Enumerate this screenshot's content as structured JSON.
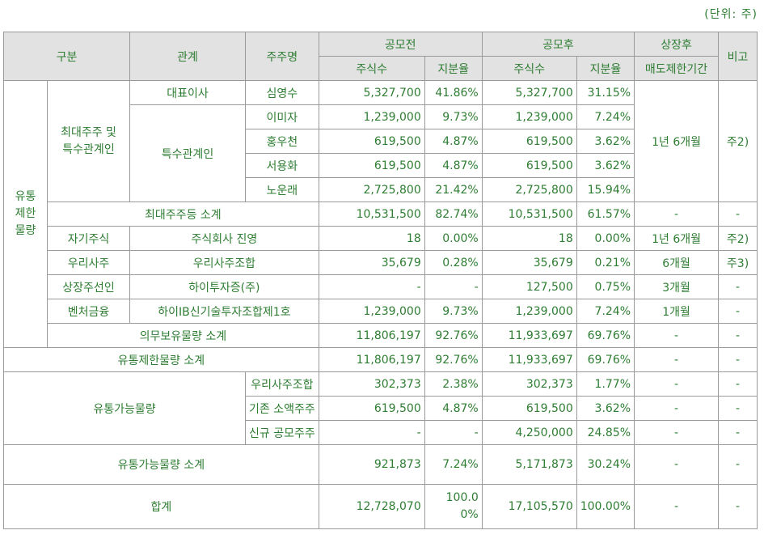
{
  "unit_label": "(단위: 주)",
  "headers": {
    "category": "구분",
    "relation": "관계",
    "holder": "주주명",
    "before": "공모전",
    "after": "공모후",
    "listing": "상장후",
    "note": "비고",
    "shares": "주식수",
    "ratio": "지분율",
    "lockup": "매도제한기간"
  },
  "labels": {
    "restricted": "유통\n제한\n물량",
    "largest_group": "최대주주 및\n특수관계인",
    "ceo": "대표이사",
    "related": "특수관계인",
    "largest_subtotal": "최대주주등 소계",
    "treasury": "자기주식",
    "esop": "우리사주",
    "underwriter": "상장주선인",
    "vc": "벤처금융",
    "mandatory_subtotal": "의무보유물량 소계",
    "restricted_subtotal": "유통제한물량 소계",
    "tradable": "유통가능물량",
    "tradable_subtotal": "유통가능물량 소계",
    "total": "합계"
  },
  "rows": {
    "shim": {
      "holder": "심영수",
      "b_shares": "5,327,700",
      "b_ratio": "41.86%",
      "a_shares": "5,327,700",
      "a_ratio": "31.15%"
    },
    "lee": {
      "holder": "이미자",
      "b_shares": "1,239,000",
      "b_ratio": "9.73%",
      "a_shares": "1,239,000",
      "a_ratio": "7.24%"
    },
    "hong": {
      "holder": "홍우천",
      "b_shares": "619,500",
      "b_ratio": "4.87%",
      "a_shares": "619,500",
      "a_ratio": "3.62%"
    },
    "seo": {
      "holder": "서용화",
      "b_shares": "619,500",
      "b_ratio": "4.87%",
      "a_shares": "619,500",
      "a_ratio": "3.62%"
    },
    "noh": {
      "holder": "노운래",
      "b_shares": "2,725,800",
      "b_ratio": "21.42%",
      "a_shares": "2,725,800",
      "a_ratio": "15.94%"
    },
    "largest_subtotal": {
      "b_shares": "10,531,500",
      "b_ratio": "82.74%",
      "a_shares": "10,531,500",
      "a_ratio": "61.57%",
      "lockup": "-",
      "note": "-"
    },
    "treasury": {
      "holder": "주식회사 진영",
      "b_shares": "18",
      "b_ratio": "0.00%",
      "a_shares": "18",
      "a_ratio": "0.00%",
      "lockup": "1년 6개월",
      "note": "주2)"
    },
    "esop": {
      "holder": "우리사주조합",
      "b_shares": "35,679",
      "b_ratio": "0.28%",
      "a_shares": "35,679",
      "a_ratio": "0.21%",
      "lockup": "6개월",
      "note": "주3)"
    },
    "underwriter": {
      "holder": "하이투자증(주)",
      "b_shares": "-",
      "b_ratio": "-",
      "a_shares": "127,500",
      "a_ratio": "0.75%",
      "lockup": "3개월",
      "note": "-"
    },
    "vc": {
      "holder": "하이IB신기술투자조합제1호",
      "b_shares": "1,239,000",
      "b_ratio": "9.73%",
      "a_shares": "1,239,000",
      "a_ratio": "7.24%",
      "lockup": "1개월",
      "note": "-"
    },
    "mandatory_subtotal": {
      "b_shares": "11,806,197",
      "b_ratio": "92.76%",
      "a_shares": "11,933,697",
      "a_ratio": "69.76%",
      "lockup": "-",
      "note": "-"
    },
    "restricted_subtotal": {
      "b_shares": "11,806,197",
      "b_ratio": "92.76%",
      "a_shares": "11,933,697",
      "a_ratio": "69.76%",
      "lockup": "-",
      "note": "-"
    },
    "t_esop": {
      "holder": "우리사주조합",
      "b_shares": "302,373",
      "b_ratio": "2.38%",
      "a_shares": "302,373",
      "a_ratio": "1.77%",
      "lockup": "-",
      "note": "-"
    },
    "t_minority": {
      "holder": "기존 소액주주",
      "b_shares": "619,500",
      "b_ratio": "4.87%",
      "a_shares": "619,500",
      "a_ratio": "3.62%",
      "lockup": "-",
      "note": "-"
    },
    "t_new": {
      "holder": "신규 공모주주",
      "b_shares": "-",
      "b_ratio": "-",
      "a_shares": "4,250,000",
      "a_ratio": "24.85%",
      "lockup": "-",
      "note": "-"
    },
    "tradable_subtotal": {
      "b_shares": "921,873",
      "b_ratio": "7.24%",
      "a_shares": "5,171,873",
      "a_ratio": "30.24%",
      "lockup": "-",
      "note": "-"
    },
    "total": {
      "b_shares": "12,728,070",
      "b_ratio": "100.0\n0%",
      "a_shares": "17,105,570",
      "a_ratio": "100.00%",
      "lockup": "-",
      "note": "-"
    }
  },
  "group_lockup": "1년 6개월",
  "group_note": "주2)"
}
